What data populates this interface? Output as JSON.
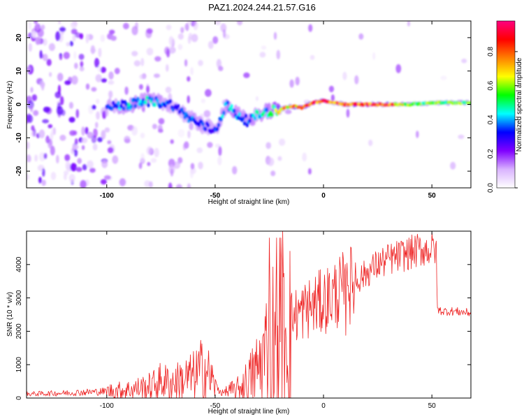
{
  "title": "PAZ1.2024.244.21.57.G16",
  "chart_data": [
    {
      "type": "heatmap",
      "xlabel": "Height of straight line (km)",
      "ylabel": "Frequency (Hz)",
      "xlim": [
        -137,
        68
      ],
      "ylim": [
        -25,
        25
      ],
      "xticks": [
        -100,
        -50,
        0,
        50
      ],
      "yticks": [
        20,
        10,
        0,
        -10,
        -20
      ],
      "grid": false,
      "colorbar": {
        "label": "Normalized spectral amplitude",
        "range": [
          0,
          1
        ],
        "ticks": [
          "0.0",
          "0.2",
          "0.4",
          "0.6",
          "0.8"
        ],
        "colors": [
          "#ffffff",
          "#d9b3ff",
          "#8000ff",
          "#0000ff",
          "#00ffff",
          "#00ff00",
          "#ffff00",
          "#ff8000",
          "#ff0000",
          "#ff0080"
        ]
      },
      "ridge": {
        "x": [
          -100,
          -90,
          -80,
          -70,
          -60,
          -50,
          -45,
          -40,
          -35,
          -30,
          -25,
          -20,
          -15,
          -10,
          -5,
          0,
          10,
          20,
          30,
          40,
          50,
          60,
          68
        ],
        "y": [
          -1,
          0,
          1,
          0,
          -5,
          -8,
          0,
          -3,
          -5,
          -3,
          -2,
          -1.5,
          -0.5,
          -1,
          0.5,
          1,
          0,
          0,
          0,
          0,
          0.5,
          0.5,
          0.5
        ],
        "peak_amplitude": [
          0.35,
          0.45,
          0.45,
          0.35,
          0.4,
          0.35,
          0.45,
          0.45,
          0.4,
          0.45,
          0.5,
          0.7,
          0.8,
          0.85,
          0.9,
          0.9,
          0.9,
          0.9,
          0.9,
          0.6,
          0.6,
          0.6,
          0.6
        ]
      }
    },
    {
      "type": "line",
      "xlabel": "Height of straight line (km)",
      "ylabel": "SNR (10 * v/v)",
      "xlim": [
        -137,
        68
      ],
      "ylim": [
        0,
        5000
      ],
      "xticks": [
        -100,
        -50,
        0,
        50
      ],
      "yticks": [
        0,
        1000,
        2000,
        3000,
        4000
      ],
      "grid": false,
      "series": [
        {
          "color": "#ee2222",
          "x": [
            -137,
            -120,
            -100,
            -90,
            -80,
            -75,
            -70,
            -60,
            -55,
            -50,
            -47,
            -45,
            -40,
            -35,
            -30,
            -25,
            -22,
            -20,
            -15,
            -10,
            -5,
            0,
            5,
            10,
            15,
            20,
            25,
            30,
            35,
            40,
            45,
            50,
            52,
            52.5,
            55,
            60,
            68
          ],
          "y": [
            120,
            150,
            200,
            250,
            350,
            500,
            450,
            650,
            900,
            400,
            150,
            180,
            250,
            500,
            900,
            1600,
            2000,
            2200,
            2400,
            2600,
            2750,
            2900,
            3100,
            3300,
            3500,
            3750,
            4000,
            4150,
            4250,
            4350,
            4450,
            4450,
            4500,
            2650,
            2600,
            2600,
            2550
          ]
        }
      ]
    }
  ]
}
